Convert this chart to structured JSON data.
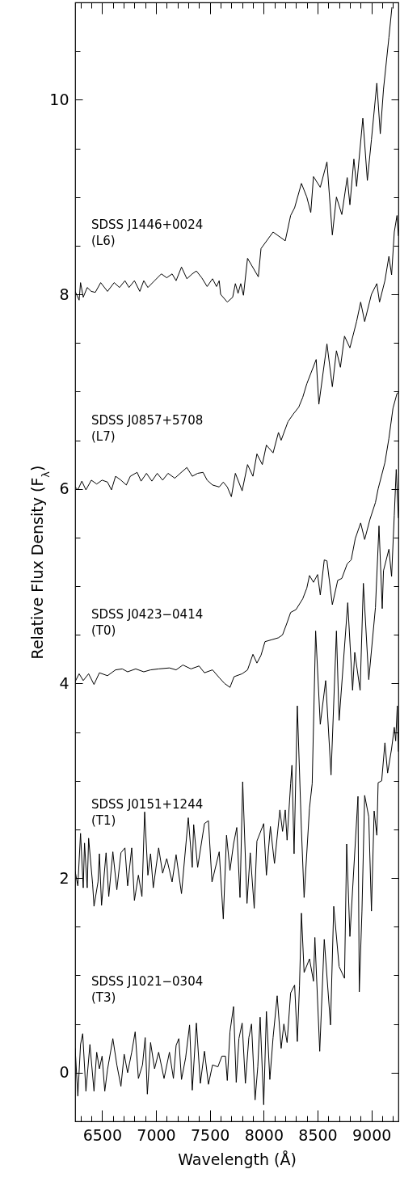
{
  "chart_data": {
    "type": "line",
    "xlabel": "Wavelength (Å)",
    "ylabel": "Relative Flux Density (F$_{λ}$)",
    "xlim": [
      6250,
      9250
    ],
    "ylim": [
      -0.5,
      11
    ],
    "xticks": [
      {
        "value": 6300,
        "label": null
      },
      {
        "value": 6400,
        "label": null
      },
      6500,
      {
        "value": 6600,
        "label": null
      },
      {
        "value": 6700,
        "label": null
      },
      {
        "value": 6800,
        "label": null
      },
      {
        "value": 6900,
        "label": null
      },
      7000,
      {
        "value": 7100,
        "label": null
      },
      {
        "value": 7200,
        "label": null
      },
      {
        "value": 7300,
        "label": null
      },
      {
        "value": 7400,
        "label": null
      },
      7500,
      {
        "value": 7600,
        "label": null
      },
      {
        "value": 7700,
        "label": null
      },
      {
        "value": 7800,
        "label": null
      },
      {
        "value": 7900,
        "label": null
      },
      8000,
      {
        "value": 8100,
        "label": null
      },
      {
        "value": 8200,
        "label": null
      },
      {
        "value": 8300,
        "label": null
      },
      {
        "value": 8400,
        "label": null
      },
      8500,
      {
        "value": 8600,
        "label": null
      },
      {
        "value": 8700,
        "label": null
      },
      {
        "value": 8800,
        "label": null
      },
      {
        "value": 8900,
        "label": null
      },
      9000,
      {
        "value": 9100,
        "label": null
      },
      {
        "value": 9200,
        "label": null
      }
    ],
    "yticks": [
      0,
      {
        "value": 0.5,
        "label": null
      },
      {
        "value": 1,
        "label": null
      },
      {
        "value": 1.5,
        "label": null
      },
      2,
      {
        "value": 2.5,
        "label": null
      },
      {
        "value": 3,
        "label": null
      },
      {
        "value": 3.5,
        "label": null
      },
      4,
      {
        "value": 4.5,
        "label": null
      },
      {
        "value": 5,
        "label": null
      },
      {
        "value": 5.5,
        "label": null
      },
      6,
      {
        "value": 6.5,
        "label": null
      },
      {
        "value": 7,
        "label": null
      },
      {
        "value": 7.5,
        "label": null
      },
      8,
      {
        "value": 8.5,
        "label": null
      },
      {
        "value": 9,
        "label": null
      },
      {
        "value": 9.5,
        "label": null
      },
      10,
      {
        "value": 10.5,
        "label": null
      }
    ],
    "series": [
      {
        "name": "SDSS J1446+0024 (L6)",
        "color": "#000000",
        "x": [
          6250,
          6287,
          6300,
          6325,
          6362,
          6400,
          6437,
          6487,
          6550,
          6612,
          6662,
          6712,
          6750,
          6800,
          6850,
          6887,
          6925,
          6987,
          7050,
          7100,
          7150,
          7187,
          7237,
          7287,
          7337,
          7375,
          7425,
          7475,
          7525,
          7562,
          7587,
          7600,
          7662,
          7712,
          7737,
          7762,
          7787,
          7812,
          7850,
          7950,
          7975,
          8087,
          8200,
          8250,
          8287,
          8350,
          8400,
          8437,
          8462,
          8525,
          8587,
          8637,
          8675,
          8725,
          8775,
          8800,
          8837,
          8862,
          8920,
          8962,
          9000,
          9050,
          9082,
          9112,
          9162,
          9190
        ],
        "values": [
          8.03,
          7.94,
          8.12,
          7.97,
          8.07,
          8.03,
          8.02,
          8.12,
          8.03,
          8.12,
          8.07,
          8.14,
          8.07,
          8.14,
          8.03,
          8.14,
          8.07,
          8.14,
          8.21,
          8.17,
          8.21,
          8.14,
          8.28,
          8.16,
          8.21,
          8.24,
          8.17,
          8.08,
          8.16,
          8.08,
          8.14,
          8.0,
          7.92,
          7.97,
          8.11,
          8.01,
          8.11,
          7.99,
          8.37,
          8.18,
          8.47,
          8.64,
          8.55,
          8.81,
          8.89,
          9.14,
          9.0,
          8.84,
          9.21,
          9.1,
          9.36,
          8.61,
          9.0,
          8.82,
          9.2,
          8.92,
          9.39,
          9.11,
          9.81,
          9.17,
          9.59,
          10.17,
          9.65,
          10.11,
          10.64,
          10.95
        ]
      },
      {
        "name": "SDSS J0857+5708 (L7)",
        "color": "#000000",
        "x": [
          6250,
          6275,
          6312,
          6350,
          6400,
          6450,
          6500,
          6550,
          6587,
          6625,
          6675,
          6725,
          6762,
          6825,
          6862,
          6912,
          6962,
          7012,
          7062,
          7112,
          7175,
          7225,
          7287,
          7337,
          7387,
          7437,
          7475,
          7525,
          7587,
          7625,
          7662,
          7700,
          7737,
          7800,
          7850,
          7900,
          7937,
          7987,
          8025,
          8087,
          8137,
          8162,
          8225,
          8275,
          8325,
          8362,
          8400,
          8487,
          8512,
          8587,
          8637,
          8675,
          8712,
          8750,
          8800,
          8862,
          8900,
          8937,
          9000,
          9050,
          9075,
          9125,
          9162,
          9187,
          9212,
          9237,
          9250
        ],
        "values": [
          6.02,
          5.99,
          6.08,
          5.99,
          6.09,
          6.05,
          6.09,
          6.07,
          5.99,
          6.13,
          6.09,
          6.04,
          6.13,
          6.17,
          6.08,
          6.16,
          6.08,
          6.16,
          6.09,
          6.16,
          6.11,
          6.16,
          6.22,
          6.13,
          6.16,
          6.17,
          6.09,
          6.04,
          6.02,
          6.07,
          6.02,
          5.92,
          6.16,
          5.98,
          6.25,
          6.13,
          6.36,
          6.25,
          6.45,
          6.37,
          6.58,
          6.5,
          6.69,
          6.77,
          6.84,
          6.94,
          7.08,
          7.33,
          6.87,
          7.49,
          7.05,
          7.42,
          7.25,
          7.57,
          7.45,
          7.72,
          7.92,
          7.72,
          8.0,
          8.11,
          7.92,
          8.14,
          8.39,
          8.2,
          8.64,
          8.81,
          8.6
        ]
      },
      {
        "name": "SDSS J0423−0414 (T0)",
        "color": "#000000",
        "x": [
          6250,
          6287,
          6325,
          6375,
          6425,
          6475,
          6550,
          6625,
          6687,
          6737,
          6812,
          6887,
          6950,
          7025,
          7125,
          7187,
          7250,
          7325,
          7400,
          7450,
          7525,
          7587,
          7637,
          7687,
          7725,
          7800,
          7850,
          7900,
          7937,
          7975,
          8012,
          8075,
          8137,
          8175,
          8212,
          8250,
          8300,
          8362,
          8400,
          8425,
          8462,
          8500,
          8525,
          8562,
          8587,
          8637,
          8687,
          8725,
          8775,
          8812,
          8850,
          8900,
          8937,
          8987,
          9037,
          9062,
          9125,
          9162,
          9200,
          9237,
          9250
        ],
        "values": [
          4.02,
          4.1,
          4.03,
          4.1,
          3.99,
          4.11,
          4.08,
          4.14,
          4.15,
          4.12,
          4.15,
          4.12,
          4.14,
          4.15,
          4.16,
          4.14,
          4.19,
          4.15,
          4.18,
          4.11,
          4.14,
          4.06,
          4.0,
          3.96,
          4.07,
          4.1,
          4.14,
          4.3,
          4.21,
          4.29,
          4.43,
          4.45,
          4.47,
          4.5,
          4.61,
          4.73,
          4.76,
          4.87,
          4.98,
          5.11,
          5.04,
          5.12,
          4.91,
          5.27,
          5.26,
          4.81,
          5.06,
          5.08,
          5.23,
          5.27,
          5.49,
          5.65,
          5.48,
          5.69,
          5.86,
          6.0,
          6.27,
          6.52,
          6.83,
          6.98,
          6.99
        ]
      },
      {
        "name": "SDSS J0151+1244 (T1)",
        "color": "#000000",
        "x": [
          6250,
          6275,
          6300,
          6325,
          6337,
          6362,
          6375,
          6412,
          6425,
          6462,
          6475,
          6495,
          6537,
          6562,
          6600,
          6637,
          6675,
          6712,
          6737,
          6775,
          6800,
          6837,
          6870,
          6895,
          6925,
          6950,
          6975,
          7025,
          7062,
          7100,
          7150,
          7187,
          7237,
          7300,
          7337,
          7350,
          7387,
          7450,
          7487,
          7520,
          7587,
          7625,
          7655,
          7687,
          7720,
          7750,
          7780,
          7805,
          7845,
          7875,
          7912,
          7937,
          8000,
          8025,
          8062,
          8100,
          8150,
          8175,
          8200,
          8217,
          8250,
          8262,
          8282,
          8312,
          8350,
          8375,
          8425,
          8450,
          8482,
          8525,
          8575,
          8625,
          8675,
          8700,
          8780,
          8825,
          8845,
          8895,
          8925,
          8975,
          9037,
          9070,
          9100,
          9112,
          9162,
          9187,
          9212,
          9230,
          9250
        ],
        "values": [
          2.07,
          1.92,
          2.46,
          1.9,
          2.36,
          1.9,
          2.41,
          1.94,
          1.71,
          1.96,
          2.25,
          1.72,
          2.26,
          1.81,
          2.27,
          1.88,
          2.26,
          2.31,
          1.92,
          2.31,
          1.77,
          2.03,
          1.81,
          2.68,
          2.03,
          2.25,
          1.9,
          2.31,
          2.05,
          2.2,
          1.96,
          2.24,
          1.84,
          2.62,
          2.11,
          2.55,
          2.11,
          2.56,
          2.59,
          1.96,
          2.27,
          1.58,
          2.44,
          2.08,
          2.35,
          2.52,
          1.8,
          2.99,
          1.74,
          2.26,
          1.69,
          2.38,
          2.56,
          2.03,
          2.53,
          2.15,
          2.7,
          2.48,
          2.7,
          2.39,
          2.97,
          3.16,
          2.25,
          3.77,
          2.5,
          1.8,
          2.72,
          2.97,
          4.54,
          3.58,
          4.03,
          3.06,
          4.54,
          3.62,
          4.83,
          3.93,
          4.32,
          3.93,
          5.03,
          4.04,
          4.78,
          5.62,
          4.77,
          5.16,
          5.38,
          5.1,
          5.73,
          6.2,
          5.7
        ]
      },
      {
        "name": "SDSS J1021−0304 (T3)",
        "color": "#000000",
        "x": [
          6250,
          6275,
          6300,
          6320,
          6350,
          6387,
          6425,
          6450,
          6475,
          6500,
          6525,
          6550,
          6600,
          6637,
          6675,
          6705,
          6737,
          6775,
          6807,
          6837,
          6875,
          6900,
          6920,
          6950,
          6987,
          7025,
          7075,
          7125,
          7162,
          7187,
          7212,
          7237,
          7275,
          7312,
          7337,
          7375,
          7412,
          7450,
          7487,
          7525,
          7575,
          7612,
          7645,
          7662,
          7687,
          7720,
          7745,
          7770,
          7800,
          7830,
          7862,
          7887,
          7920,
          7945,
          7967,
          8000,
          8025,
          8057,
          8087,
          8125,
          8162,
          8187,
          8217,
          8250,
          8287,
          8312,
          8332,
          8350,
          8375,
          8425,
          8462,
          8475,
          8520,
          8562,
          8620,
          8650,
          8700,
          8750,
          8770,
          8800,
          8875,
          8887,
          8912,
          8937,
          8975,
          9000,
          9025,
          9050,
          9062,
          9095,
          9125,
          9150,
          9187,
          9212,
          9225,
          9240,
          9250
        ],
        "values": [
          0.25,
          -0.24,
          0.29,
          0.4,
          -0.19,
          0.29,
          -0.19,
          0.21,
          0.04,
          0.17,
          -0.19,
          0.03,
          0.35,
          0.08,
          -0.14,
          0.19,
          0.0,
          0.21,
          0.42,
          -0.06,
          0.08,
          0.36,
          -0.22,
          0.31,
          0.04,
          0.21,
          -0.06,
          0.21,
          -0.06,
          0.28,
          0.35,
          -0.07,
          0.15,
          0.49,
          -0.18,
          0.51,
          -0.11,
          0.22,
          -0.12,
          0.08,
          0.06,
          0.17,
          0.17,
          -0.08,
          0.42,
          0.68,
          -0.1,
          0.35,
          0.51,
          -0.11,
          0.36,
          0.5,
          -0.28,
          0.06,
          0.57,
          -0.33,
          0.63,
          -0.07,
          0.36,
          0.79,
          0.25,
          0.5,
          0.31,
          0.82,
          0.9,
          0.32,
          0.89,
          1.64,
          1.03,
          1.17,
          0.94,
          1.39,
          0.22,
          1.37,
          0.49,
          1.71,
          1.09,
          0.97,
          2.35,
          1.4,
          2.84,
          0.83,
          1.66,
          2.85,
          2.63,
          1.66,
          2.69,
          2.44,
          2.98,
          3.0,
          3.39,
          3.08,
          3.33,
          3.55,
          3.41,
          3.77,
          3.3
        ]
      }
    ]
  }
}
